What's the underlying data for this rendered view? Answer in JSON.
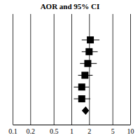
{
  "chart_data": {
    "type": "forest",
    "title": "AOR and 95% CI",
    "values": [
      2.1,
      2.0,
      1.9,
      1.7,
      1.5,
      1.5
    ],
    "lower": [
      1.5,
      1.5,
      1.4,
      1.3,
      1.1,
      1.1
    ],
    "upper": [
      3.0,
      2.8,
      2.7,
      2.3,
      2.0,
      2.1
    ],
    "summary": {
      "value": 1.75,
      "lower": 1.5,
      "upper": 2.0
    },
    "xlim": [
      0.1,
      10
    ],
    "xticks": [
      0.1,
      0.2,
      0.5,
      1,
      2,
      5,
      10
    ],
    "log": "x",
    "grid": true,
    "tick_labels": "x",
    "marker": "square",
    "color": "#000000"
  }
}
